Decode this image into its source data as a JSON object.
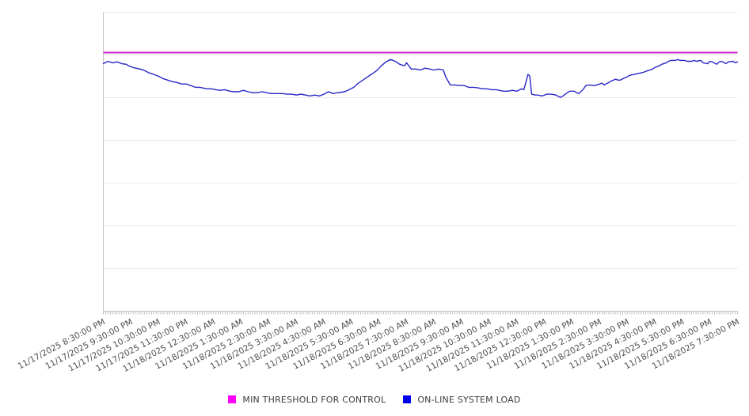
{
  "chart_data": {
    "type": "line",
    "title": "",
    "xlabel": "",
    "ylabel": "",
    "grid": "horizontal-only",
    "legend_position": "bottom-center",
    "x_axis": {
      "start": "11/17/2025 8:30:00 PM",
      "end": "11/18/2025 7:30:00 PM",
      "total_minutes": 1380,
      "major_tick_interval_minutes": 60,
      "minor_tick_interval_minutes": 5,
      "tick_labels": [
        "11/17/2025 8:30:00 PM",
        "11/17/2025 9:30:00 PM",
        "11/17/2025 10:30:00 PM",
        "11/17/2025 11:30:00 PM",
        "11/18/2025 12:30:00 AM",
        "11/18/2025 1:30:00 AM",
        "11/18/2025 2:30:00 AM",
        "11/18/2025 3:30:00 AM",
        "11/18/2025 4:30:00 AM",
        "11/18/2025 5:30:00 AM",
        "11/18/2025 6:30:00 AM",
        "11/18/2025 7:30:00 AM",
        "11/18/2025 8:30:00 AM",
        "11/18/2025 9:30:00 AM",
        "11/18/2025 10:30:00 AM",
        "11/18/2025 11:30:00 AM",
        "11/18/2025 12:30:00 PM",
        "11/18/2025 1:30:00 PM",
        "11/18/2025 2:30:00 PM",
        "11/18/2025 3:30:00 PM",
        "11/18/2025 4:30:00 PM",
        "11/18/2025 5:30:00 PM",
        "11/18/2025 6:30:00 PM",
        "11/18/2025 7:30:00 PM"
      ],
      "label_rotation_degrees": -28
    },
    "y_axis": {
      "tick_labels_shown": false,
      "unit": "relative scale 0-100 (percent of plot height; chart shows no y-axis labels)",
      "range": [
        0,
        100
      ],
      "gridline_divisions": 7
    },
    "series": [
      {
        "name": "MIN THRESHOLD FOR CONTROL",
        "color": "#cc22cc",
        "style": "horizontal-threshold",
        "value": 86.5
      },
      {
        "name": "ON-LINE SYSTEM LOAD",
        "color": "#2828c8",
        "x_unit": "minutes since 11/17/2025 8:30:00 PM",
        "points": [
          [
            0,
            82.8
          ],
          [
            10,
            83.6
          ],
          [
            20,
            83.1
          ],
          [
            30,
            83.4
          ],
          [
            40,
            82.8
          ],
          [
            50,
            82.6
          ],
          [
            55,
            82.1
          ],
          [
            65,
            81.5
          ],
          [
            80,
            81.0
          ],
          [
            90,
            80.5
          ],
          [
            100,
            79.7
          ],
          [
            110,
            79.2
          ],
          [
            120,
            78.6
          ],
          [
            130,
            77.8
          ],
          [
            140,
            77.3
          ],
          [
            150,
            76.8
          ],
          [
            160,
            76.5
          ],
          [
            170,
            76.0
          ],
          [
            180,
            76.0
          ],
          [
            190,
            75.5
          ],
          [
            200,
            74.9
          ],
          [
            210,
            74.9
          ],
          [
            225,
            74.4
          ],
          [
            235,
            74.4
          ],
          [
            245,
            74.1
          ],
          [
            255,
            73.9
          ],
          [
            265,
            74.1
          ],
          [
            275,
            73.6
          ],
          [
            285,
            73.4
          ],
          [
            295,
            73.4
          ],
          [
            305,
            73.9
          ],
          [
            315,
            73.4
          ],
          [
            325,
            73.1
          ],
          [
            335,
            73.1
          ],
          [
            345,
            73.4
          ],
          [
            355,
            73.1
          ],
          [
            365,
            72.8
          ],
          [
            380,
            72.8
          ],
          [
            390,
            72.8
          ],
          [
            400,
            72.6
          ],
          [
            410,
            72.6
          ],
          [
            420,
            72.3
          ],
          [
            430,
            72.6
          ],
          [
            440,
            72.3
          ],
          [
            450,
            72.0
          ],
          [
            460,
            72.3
          ],
          [
            470,
            72.0
          ],
          [
            480,
            72.6
          ],
          [
            490,
            73.4
          ],
          [
            500,
            72.8
          ],
          [
            510,
            73.1
          ],
          [
            525,
            73.4
          ],
          [
            535,
            74.1
          ],
          [
            545,
            74.9
          ],
          [
            555,
            76.3
          ],
          [
            565,
            77.3
          ],
          [
            575,
            78.4
          ],
          [
            585,
            79.4
          ],
          [
            595,
            80.5
          ],
          [
            605,
            82.1
          ],
          [
            615,
            83.4
          ],
          [
            625,
            84.2
          ],
          [
            635,
            83.6
          ],
          [
            645,
            82.6
          ],
          [
            655,
            82.1
          ],
          [
            660,
            83.1
          ],
          [
            670,
            81.0
          ],
          [
            680,
            81.0
          ],
          [
            690,
            80.7
          ],
          [
            700,
            81.3
          ],
          [
            710,
            81.0
          ],
          [
            720,
            80.7
          ],
          [
            730,
            81.0
          ],
          [
            740,
            80.7
          ],
          [
            745,
            78.4
          ],
          [
            755,
            75.7
          ],
          [
            765,
            75.7
          ],
          [
            775,
            75.5
          ],
          [
            785,
            75.5
          ],
          [
            795,
            74.9
          ],
          [
            805,
            74.9
          ],
          [
            815,
            74.7
          ],
          [
            825,
            74.4
          ],
          [
            835,
            74.4
          ],
          [
            845,
            74.1
          ],
          [
            855,
            74.1
          ],
          [
            870,
            73.6
          ],
          [
            880,
            73.6
          ],
          [
            890,
            73.9
          ],
          [
            900,
            73.6
          ],
          [
            910,
            74.4
          ],
          [
            915,
            74.1
          ],
          [
            920,
            76.8
          ],
          [
            924,
            79.2
          ],
          [
            928,
            78.7
          ],
          [
            932,
            72.6
          ],
          [
            940,
            72.3
          ],
          [
            945,
            72.3
          ],
          [
            955,
            72.0
          ],
          [
            965,
            72.6
          ],
          [
            975,
            72.6
          ],
          [
            985,
            72.3
          ],
          [
            995,
            71.5
          ],
          [
            1000,
            72.0
          ],
          [
            1010,
            73.1
          ],
          [
            1015,
            73.6
          ],
          [
            1025,
            73.6
          ],
          [
            1030,
            73.1
          ],
          [
            1035,
            72.8
          ],
          [
            1045,
            74.4
          ],
          [
            1050,
            75.5
          ],
          [
            1060,
            75.7
          ],
          [
            1065,
            75.5
          ],
          [
            1070,
            75.5
          ],
          [
            1080,
            76.0
          ],
          [
            1085,
            76.3
          ],
          [
            1090,
            75.7
          ],
          [
            1100,
            76.5
          ],
          [
            1105,
            77.0
          ],
          [
            1115,
            77.6
          ],
          [
            1120,
            77.3
          ],
          [
            1125,
            77.3
          ],
          [
            1135,
            78.1
          ],
          [
            1140,
            78.4
          ],
          [
            1145,
            78.9
          ],
          [
            1155,
            79.2
          ],
          [
            1160,
            79.4
          ],
          [
            1170,
            79.7
          ],
          [
            1175,
            79.9
          ],
          [
            1180,
            80.2
          ],
          [
            1190,
            80.7
          ],
          [
            1195,
            81.0
          ],
          [
            1200,
            81.5
          ],
          [
            1210,
            82.1
          ],
          [
            1215,
            82.6
          ],
          [
            1225,
            83.1
          ],
          [
            1230,
            83.6
          ],
          [
            1235,
            83.9
          ],
          [
            1245,
            83.9
          ],
          [
            1250,
            84.2
          ],
          [
            1255,
            83.9
          ],
          [
            1265,
            83.9
          ],
          [
            1270,
            83.6
          ],
          [
            1280,
            83.6
          ],
          [
            1285,
            83.9
          ],
          [
            1290,
            83.6
          ],
          [
            1300,
            83.9
          ],
          [
            1305,
            83.1
          ],
          [
            1315,
            82.8
          ],
          [
            1320,
            83.6
          ],
          [
            1325,
            83.4
          ],
          [
            1335,
            82.6
          ],
          [
            1340,
            83.4
          ],
          [
            1345,
            83.6
          ],
          [
            1355,
            82.8
          ],
          [
            1360,
            83.4
          ],
          [
            1370,
            83.6
          ],
          [
            1375,
            83.1
          ],
          [
            1380,
            83.4
          ]
        ]
      }
    ]
  },
  "legend": {
    "items": [
      {
        "label": "MIN THRESHOLD FOR CONTROL",
        "swatch": "#ff00ff"
      },
      {
        "label": "ON-LINE SYSTEM LOAD",
        "swatch": "#0000ee"
      }
    ]
  },
  "colors": {
    "background": "#ffffff",
    "grid": "#eaeaea",
    "axis": "#c4c4c4",
    "minor_tick": "#c0c0c0",
    "tick_label": "#4d4d4d"
  }
}
